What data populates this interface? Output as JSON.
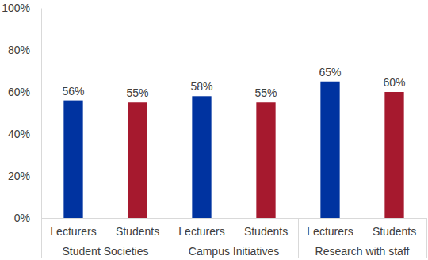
{
  "chart_data": {
    "type": "bar",
    "categories": [
      "Student Societies",
      "Campus Initiatives",
      "Research with staff"
    ],
    "series": [
      {
        "name": "Lecturers",
        "color": "#0033a0",
        "values": [
          56,
          58,
          65
        ],
        "value_labels": [
          "56%",
          "58%",
          "65%"
        ]
      },
      {
        "name": "Students",
        "color": "#a6192e",
        "values": [
          55,
          55,
          60
        ],
        "value_labels": [
          "55%",
          "55%",
          "60%"
        ]
      }
    ],
    "ylim": [
      0,
      100
    ],
    "yticks": [
      {
        "value": 0,
        "label": "0%"
      },
      {
        "value": 20,
        "label": "20%"
      },
      {
        "value": 40,
        "label": "40%"
      },
      {
        "value": 60,
        "label": "60%"
      },
      {
        "value": 80,
        "label": "80%"
      },
      {
        "value": 100,
        "label": "100%"
      }
    ],
    "grid": false,
    "data_labels": true
  }
}
